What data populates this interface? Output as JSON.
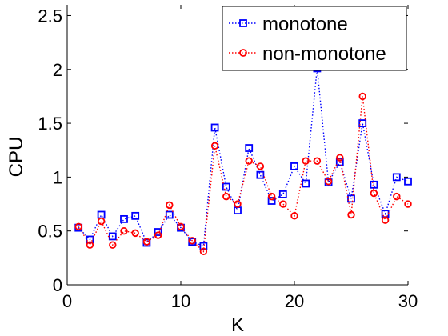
{
  "chart_data": {
    "type": "line",
    "xlabel": "K",
    "ylabel": "CPU",
    "xlim": [
      0,
      30
    ],
    "ylim": [
      0,
      2.6
    ],
    "xticks": [
      0,
      10,
      20,
      30
    ],
    "yticks": [
      0,
      0.5,
      1,
      1.5,
      2,
      2.5
    ],
    "xtick_labels": [
      "0",
      "10",
      "20",
      "30"
    ],
    "ytick_labels": [
      "0",
      "0.5",
      "1",
      "1.5",
      "2",
      "2.5"
    ],
    "grid": false,
    "legend_position": "top-right",
    "x": [
      1,
      2,
      3,
      4,
      5,
      6,
      7,
      8,
      9,
      10,
      11,
      12,
      13,
      14,
      15,
      16,
      17,
      18,
      19,
      20,
      21,
      22,
      23,
      24,
      25,
      26,
      27,
      28,
      29,
      30
    ],
    "series": [
      {
        "name": "monotone",
        "color": "#0000ff",
        "line_style": "dotted",
        "marker": "square",
        "values": [
          0.53,
          0.42,
          0.65,
          0.45,
          0.61,
          0.64,
          0.39,
          0.49,
          0.65,
          0.53,
          0.4,
          0.36,
          1.46,
          0.91,
          0.69,
          1.27,
          1.02,
          0.78,
          0.84,
          1.1,
          0.94,
          2.01,
          0.95,
          1.14,
          0.8,
          1.5,
          0.93,
          0.66,
          1.0,
          0.96
        ]
      },
      {
        "name": "non-monotone",
        "color": "#ff0000",
        "line_style": "dotted",
        "marker": "circle",
        "values": [
          0.54,
          0.37,
          0.59,
          0.37,
          0.5,
          0.48,
          0.4,
          0.46,
          0.74,
          0.54,
          0.41,
          0.31,
          1.29,
          0.82,
          0.75,
          1.15,
          1.1,
          0.82,
          0.75,
          0.64,
          1.15,
          1.15,
          0.96,
          1.18,
          0.65,
          1.75,
          0.85,
          0.6,
          0.82,
          0.75
        ]
      }
    ]
  }
}
